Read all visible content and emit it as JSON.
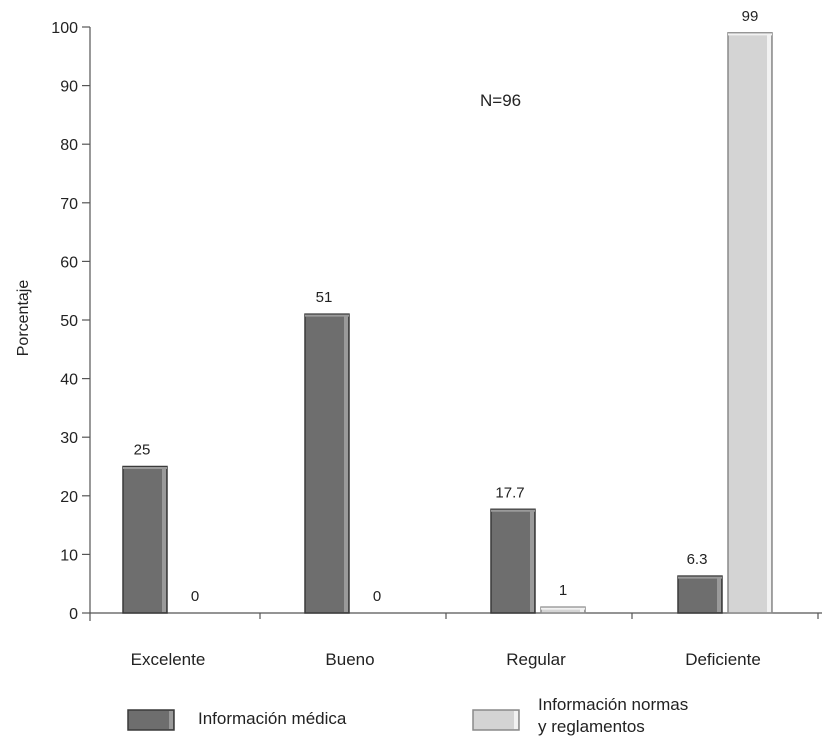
{
  "chart_data": {
    "type": "bar",
    "title": "",
    "annotation": "N=96",
    "xlabel": "",
    "ylabel": "Porcentaje",
    "ylim": [
      0,
      100
    ],
    "yticks": [
      0,
      10,
      20,
      30,
      40,
      50,
      60,
      70,
      80,
      90,
      100
    ],
    "grid": false,
    "categories": [
      "Excelente",
      "Bueno",
      "Regular",
      "Deficiente"
    ],
    "series": [
      {
        "name": "Información médica",
        "values": [
          25,
          51,
          17.7,
          6.3
        ],
        "value_labels": [
          "25",
          "51",
          "17.7",
          "6.3"
        ],
        "color": "#6e6e6e"
      },
      {
        "name": "Información normas y reglamentos",
        "name_lines": [
          "Información normas",
          "y reglamentos"
        ],
        "values": [
          0,
          0,
          1,
          99
        ],
        "value_labels": [
          "0",
          "0",
          "1",
          "99"
        ],
        "color": "#d4d4d4"
      }
    ],
    "legend_position": "bottom"
  }
}
